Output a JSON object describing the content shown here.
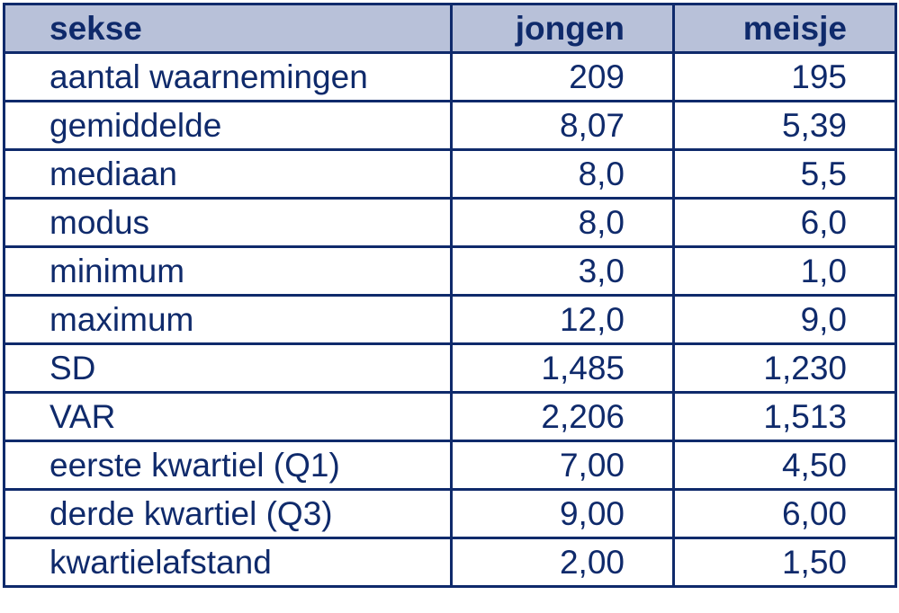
{
  "table": {
    "headers": {
      "label": "sekse",
      "boy": "jongen",
      "girl": "meisje"
    },
    "rows": [
      {
        "label": "aantal waarnemingen",
        "boy": "209",
        "girl": "195"
      },
      {
        "label": "gemiddelde",
        "boy": "8,07",
        "girl": "5,39"
      },
      {
        "label": "mediaan",
        "boy": "8,0",
        "girl": "5,5"
      },
      {
        "label": "modus",
        "boy": "8,0",
        "girl": "6,0"
      },
      {
        "label": "minimum",
        "boy": "3,0",
        "girl": "1,0"
      },
      {
        "label": "maximum",
        "boy": "12,0",
        "girl": "9,0"
      },
      {
        "label": "SD",
        "boy": "1,485",
        "girl": "1,230"
      },
      {
        "label": "VAR",
        "boy": "2,206",
        "girl": "1,513"
      },
      {
        "label": "eerste kwartiel (Q1)",
        "boy": "7,00",
        "girl": "4,50"
      },
      {
        "label": "derde kwartiel (Q3)",
        "boy": "9,00",
        "girl": "6,00"
      },
      {
        "label": "kwartielafstand",
        "boy": "2,00",
        "girl": "1,50"
      }
    ]
  },
  "colors": {
    "text": "#0f2a6b",
    "border": "#0f2a6b",
    "header_background": "#b8c1d9"
  }
}
